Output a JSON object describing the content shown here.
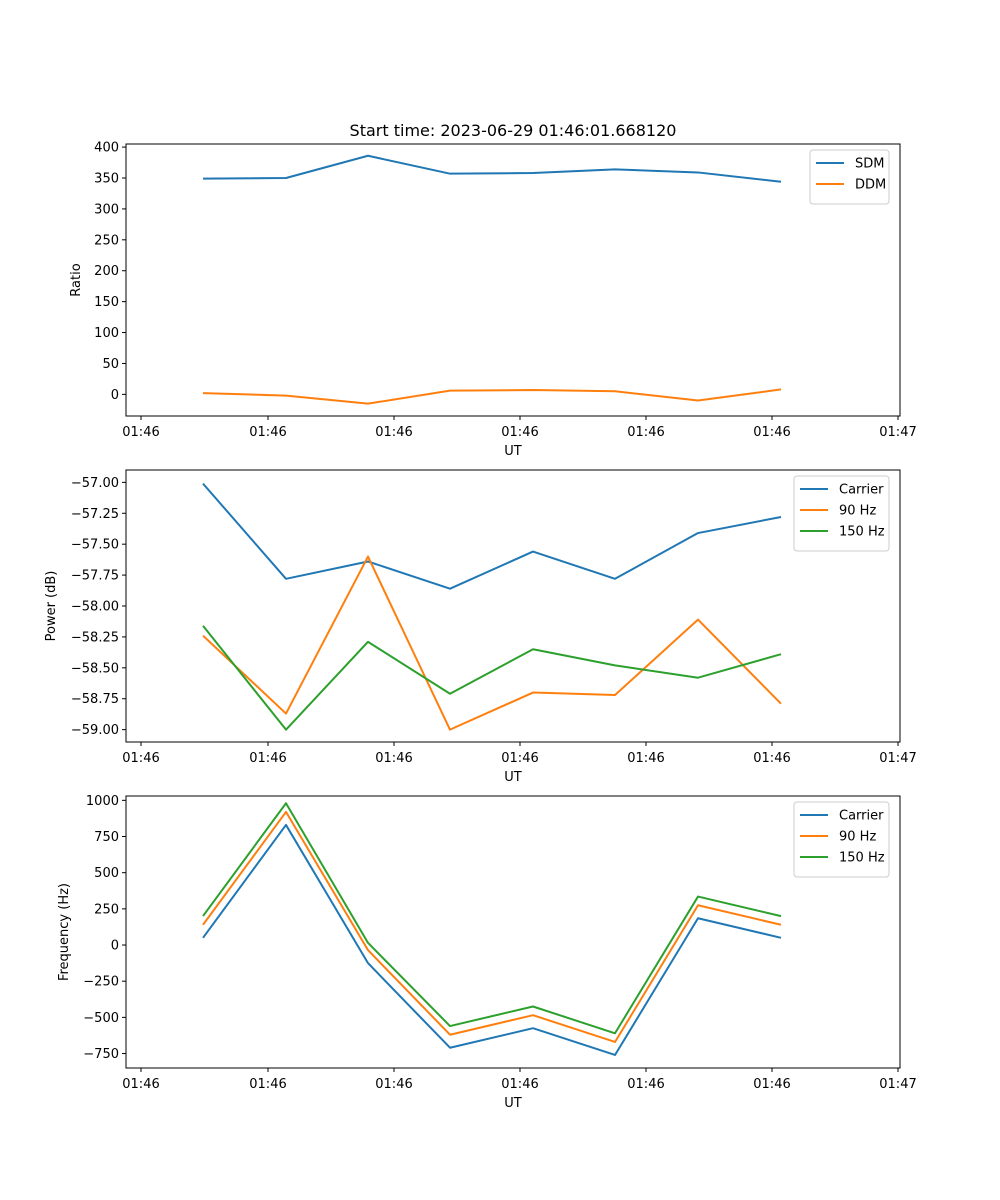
{
  "title": "Start time: 2023-06-29 01:46:01.668120",
  "chart_data": [
    {
      "type": "line",
      "title": "Start time: 2023-06-29 01:46:01.668120",
      "xlabel": "UT",
      "ylabel": "Ratio",
      "xticks": [
        "01:46",
        "01:46",
        "01:46",
        "01:46",
        "01:46",
        "01:46",
        "01:47"
      ],
      "yticks": [
        0,
        50,
        100,
        150,
        200,
        250,
        300,
        350,
        400
      ],
      "ylim": [
        -35,
        405
      ],
      "legend_position": "upper-right",
      "series": [
        {
          "name": "SDM",
          "color": "#1f77b4",
          "values": [
            349,
            350,
            386,
            357,
            358,
            364,
            359,
            344
          ]
        },
        {
          "name": "DDM",
          "color": "#ff7f0e",
          "values": [
            2,
            -2,
            -15,
            6,
            7,
            5,
            -10,
            8
          ]
        }
      ]
    },
    {
      "type": "line",
      "xlabel": "UT",
      "ylabel": "Power (dB)",
      "xticks": [
        "01:46",
        "01:46",
        "01:46",
        "01:46",
        "01:46",
        "01:46",
        "01:47"
      ],
      "yticks": [
        -59.0,
        -58.75,
        -58.5,
        -58.25,
        -58.0,
        -57.75,
        -57.5,
        -57.25,
        -57.0
      ],
      "ytick_labels": [
        "−59.00",
        "−58.75",
        "−58.50",
        "−58.25",
        "−58.00",
        "−57.75",
        "−57.50",
        "−57.25",
        "−57.00"
      ],
      "ylim": [
        -59.1,
        -56.9
      ],
      "legend_position": "upper-right",
      "series": [
        {
          "name": "Carrier",
          "color": "#1f77b4",
          "values": [
            -57.01,
            -57.78,
            -57.64,
            -57.86,
            -57.56,
            -57.78,
            -57.41,
            -57.28
          ]
        },
        {
          "name": "90 Hz",
          "color": "#ff7f0e",
          "values": [
            -58.24,
            -58.87,
            -57.6,
            -59.0,
            -58.7,
            -58.72,
            -58.11,
            -58.79
          ]
        },
        {
          "name": "150 Hz",
          "color": "#2ca02c",
          "values": [
            -58.16,
            -59.0,
            -58.29,
            -58.71,
            -58.35,
            -58.48,
            -58.58,
            -58.39
          ]
        }
      ]
    },
    {
      "type": "line",
      "xlabel": "UT",
      "ylabel": "Frequency (Hz)",
      "xticks": [
        "01:46",
        "01:46",
        "01:46",
        "01:46",
        "01:46",
        "01:46",
        "01:47"
      ],
      "yticks": [
        -750,
        -500,
        -250,
        0,
        250,
        500,
        750,
        1000
      ],
      "ytick_labels": [
        "−750",
        "−500",
        "−250",
        "0",
        "250",
        "500",
        "750",
        "1000"
      ],
      "ylim": [
        -850,
        1030
      ],
      "legend_position": "upper-right",
      "series": [
        {
          "name": "Carrier",
          "color": "#1f77b4",
          "values": [
            50,
            830,
            -125,
            -710,
            -575,
            -760,
            185,
            50
          ]
        },
        {
          "name": "90 Hz",
          "color": "#ff7f0e",
          "values": [
            140,
            920,
            -35,
            -620,
            -485,
            -670,
            275,
            140
          ]
        },
        {
          "name": "150 Hz",
          "color": "#2ca02c",
          "values": [
            200,
            980,
            15,
            -560,
            -425,
            -610,
            335,
            200
          ]
        }
      ]
    }
  ]
}
